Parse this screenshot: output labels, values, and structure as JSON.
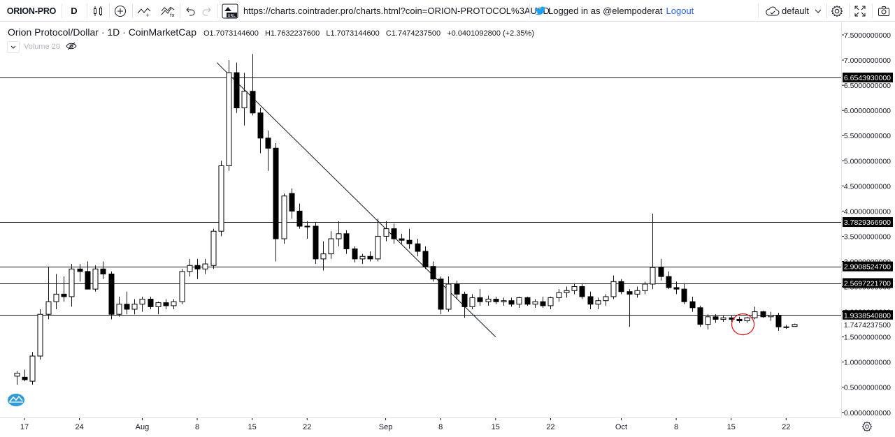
{
  "toolbar": {
    "symbol": "ORION-PRO",
    "interval": "D",
    "url": "https://charts.cointrader.pro/charts.html?coin=ORION-PROTOCOL%3AUSD",
    "login_text": "Logged in as @elempoderat",
    "logout_label": "Logout",
    "layout_name": "default",
    "icons": [
      "add-indicator-icon",
      "candles-icon",
      "plus-circle-icon",
      "compare-icon",
      "indicators-icon",
      "undo-icon",
      "redo-icon",
      "url-icon",
      "twitter-icon",
      "cloud-icon",
      "settings-icon",
      "fullscreen-icon",
      "camera-icon"
    ]
  },
  "legend": {
    "title": "Orion Protocol/Dollar · 1D · CoinMarketCap",
    "open": "O1.7073144600",
    "high": "H1.7632237600",
    "low": "L1.7073144600",
    "close": "C1.7474237500",
    "change": "+0.0401092800 (+2.35%)",
    "volume_label": "Volume 20"
  },
  "chart_data": {
    "type": "candlestick",
    "price_axis_ticks": [
      "7.5000000000",
      "7.0000000000",
      "6.5000000000",
      "6.0000000000",
      "5.5000000000",
      "5.0000000000",
      "4.5000000000",
      "4.0000000000",
      "3.5000000000",
      "3.0000000000",
      "2.5000000000",
      "2.0000000000",
      "1.5000000000",
      "1.0000000000",
      "0.5000000000",
      "0.0000000000"
    ],
    "price_min": -0.1,
    "price_max": 7.75,
    "time_axis_ticks": [
      {
        "label": "17",
        "day": 0
      },
      {
        "label": "24",
        "day": 7
      },
      {
        "label": "Aug",
        "day": 15
      },
      {
        "label": "8",
        "day": 22
      },
      {
        "label": "15",
        "day": 29
      },
      {
        "label": "22",
        "day": 36
      },
      {
        "label": "Sep",
        "day": 46
      },
      {
        "label": "8",
        "day": 53
      },
      {
        "label": "15",
        "day": 60
      },
      {
        "label": "22",
        "day": 67
      },
      {
        "label": "Oct",
        "day": 76
      },
      {
        "label": "8",
        "day": 83
      },
      {
        "label": "15",
        "day": 90
      },
      {
        "label": "22",
        "day": 97
      }
    ],
    "horizontal_levels": [
      {
        "price": 6.654393,
        "label": "6.6543930000"
      },
      {
        "price": 3.7829366,
        "label": "3.7829366900"
      },
      {
        "price": 2.9008524,
        "label": "2.9008524700"
      },
      {
        "price": 2.5697221,
        "label": "2.5697221700"
      },
      {
        "price": 1.933854,
        "label": "1.9338540800"
      }
    ],
    "last_price": {
      "price": 1.74742375,
      "label": "1.7474237500"
    },
    "trendline": {
      "from": {
        "day": 24.5,
        "price": 6.95
      },
      "to": {
        "day": 60,
        "price": 1.5
      }
    },
    "annotation": {
      "type": "circle",
      "day": 91.5,
      "price": 1.75
    },
    "candles": [
      {
        "d": -1,
        "o": 0.72,
        "h": 0.82,
        "l": 0.55,
        "c": 0.78
      },
      {
        "d": 0,
        "o": 0.7,
        "h": 0.85,
        "l": 0.62,
        "c": 0.65
      },
      {
        "d": 1,
        "o": 0.62,
        "h": 1.2,
        "l": 0.55,
        "c": 1.12
      },
      {
        "d": 2,
        "o": 1.12,
        "h": 2.05,
        "l": 1.05,
        "c": 1.95
      },
      {
        "d": 3,
        "o": 1.95,
        "h": 2.9,
        "l": 1.85,
        "c": 2.2
      },
      {
        "d": 4,
        "o": 2.2,
        "h": 2.75,
        "l": 2.05,
        "c": 2.35
      },
      {
        "d": 5,
        "o": 2.35,
        "h": 2.7,
        "l": 2.2,
        "c": 2.3
      },
      {
        "d": 6,
        "o": 2.3,
        "h": 2.95,
        "l": 2.1,
        "c": 2.85
      },
      {
        "d": 7,
        "o": 2.85,
        "h": 2.95,
        "l": 2.6,
        "c": 2.8
      },
      {
        "d": 8,
        "o": 2.8,
        "h": 3.0,
        "l": 2.45,
        "c": 2.45
      },
      {
        "d": 9,
        "o": 2.45,
        "h": 2.92,
        "l": 2.4,
        "c": 2.85
      },
      {
        "d": 10,
        "o": 2.85,
        "h": 3.0,
        "l": 2.65,
        "c": 2.75
      },
      {
        "d": 11,
        "o": 2.75,
        "h": 2.8,
        "l": 1.85,
        "c": 1.95
      },
      {
        "d": 12,
        "o": 1.95,
        "h": 2.3,
        "l": 1.9,
        "c": 2.15
      },
      {
        "d": 13,
        "o": 2.15,
        "h": 2.4,
        "l": 1.95,
        "c": 2.05
      },
      {
        "d": 14,
        "o": 2.05,
        "h": 2.25,
        "l": 1.95,
        "c": 2.15
      },
      {
        "d": 15,
        "o": 2.15,
        "h": 2.3,
        "l": 2.0,
        "c": 2.25
      },
      {
        "d": 16,
        "o": 2.25,
        "h": 2.3,
        "l": 2.05,
        "c": 2.1
      },
      {
        "d": 17,
        "o": 2.1,
        "h": 2.2,
        "l": 1.95,
        "c": 2.18
      },
      {
        "d": 18,
        "o": 2.18,
        "h": 2.25,
        "l": 2.05,
        "c": 2.12
      },
      {
        "d": 19,
        "o": 2.12,
        "h": 2.25,
        "l": 2.05,
        "c": 2.2
      },
      {
        "d": 20,
        "o": 2.2,
        "h": 2.85,
        "l": 2.15,
        "c": 2.8
      },
      {
        "d": 21,
        "o": 2.8,
        "h": 3.05,
        "l": 2.7,
        "c": 2.92
      },
      {
        "d": 22,
        "o": 2.92,
        "h": 3.05,
        "l": 2.65,
        "c": 2.85
      },
      {
        "d": 23,
        "o": 2.85,
        "h": 3.05,
        "l": 2.75,
        "c": 2.95
      },
      {
        "d": 24,
        "o": 2.92,
        "h": 3.65,
        "l": 2.85,
        "c": 3.6
      },
      {
        "d": 25,
        "o": 3.6,
        "h": 5.0,
        "l": 3.5,
        "c": 4.9
      },
      {
        "d": 26,
        "o": 4.9,
        "h": 7.0,
        "l": 4.8,
        "c": 6.75
      },
      {
        "d": 27,
        "o": 6.75,
        "h": 6.95,
        "l": 5.95,
        "c": 6.05
      },
      {
        "d": 28,
        "o": 6.05,
        "h": 6.75,
        "l": 5.7,
        "c": 6.38
      },
      {
        "d": 29,
        "o": 6.38,
        "h": 7.12,
        "l": 5.9,
        "c": 5.95
      },
      {
        "d": 30,
        "o": 5.95,
        "h": 6.05,
        "l": 5.15,
        "c": 5.45
      },
      {
        "d": 31,
        "o": 5.45,
        "h": 5.6,
        "l": 4.8,
        "c": 5.25
      },
      {
        "d": 32,
        "o": 5.25,
        "h": 5.35,
        "l": 3.0,
        "c": 3.45
      },
      {
        "d": 33,
        "o": 3.45,
        "h": 4.35,
        "l": 3.35,
        "c": 4.3
      },
      {
        "d": 34,
        "o": 4.35,
        "h": 4.45,
        "l": 3.85,
        "c": 4.0
      },
      {
        "d": 35,
        "o": 4.0,
        "h": 4.15,
        "l": 3.65,
        "c": 3.7
      },
      {
        "d": 36,
        "o": 3.7,
        "h": 3.8,
        "l": 3.45,
        "c": 3.7
      },
      {
        "d": 37,
        "o": 3.7,
        "h": 3.78,
        "l": 2.95,
        "c": 3.05
      },
      {
        "d": 38,
        "o": 3.05,
        "h": 3.4,
        "l": 2.82,
        "c": 3.15
      },
      {
        "d": 39,
        "o": 3.15,
        "h": 3.6,
        "l": 3.05,
        "c": 3.45
      },
      {
        "d": 40,
        "o": 3.45,
        "h": 3.8,
        "l": 3.3,
        "c": 3.55
      },
      {
        "d": 41,
        "o": 3.55,
        "h": 3.62,
        "l": 3.15,
        "c": 3.25
      },
      {
        "d": 42,
        "o": 3.25,
        "h": 3.3,
        "l": 2.98,
        "c": 3.05
      },
      {
        "d": 43,
        "o": 3.05,
        "h": 3.15,
        "l": 2.95,
        "c": 3.1
      },
      {
        "d": 44,
        "o": 3.1,
        "h": 3.2,
        "l": 3.0,
        "c": 3.05
      },
      {
        "d": 45,
        "o": 3.05,
        "h": 3.85,
        "l": 3.0,
        "c": 3.5
      },
      {
        "d": 46,
        "o": 3.5,
        "h": 3.8,
        "l": 3.4,
        "c": 3.65
      },
      {
        "d": 47,
        "o": 3.65,
        "h": 3.75,
        "l": 3.35,
        "c": 3.45
      },
      {
        "d": 48,
        "o": 3.45,
        "h": 3.55,
        "l": 3.35,
        "c": 3.42
      },
      {
        "d": 49,
        "o": 3.42,
        "h": 3.65,
        "l": 3.25,
        "c": 3.35
      },
      {
        "d": 50,
        "o": 3.35,
        "h": 3.45,
        "l": 3.1,
        "c": 3.2
      },
      {
        "d": 51,
        "o": 3.2,
        "h": 3.3,
        "l": 2.85,
        "c": 2.9
      },
      {
        "d": 52,
        "o": 2.9,
        "h": 3.0,
        "l": 2.6,
        "c": 2.65
      },
      {
        "d": 53,
        "o": 2.65,
        "h": 2.7,
        "l": 1.95,
        "c": 2.05
      },
      {
        "d": 54,
        "o": 2.05,
        "h": 2.7,
        "l": 2.0,
        "c": 2.55
      },
      {
        "d": 55,
        "o": 2.55,
        "h": 2.62,
        "l": 2.25,
        "c": 2.35
      },
      {
        "d": 56,
        "o": 2.35,
        "h": 2.4,
        "l": 1.88,
        "c": 2.1
      },
      {
        "d": 57,
        "o": 2.1,
        "h": 2.35,
        "l": 2.05,
        "c": 2.28
      },
      {
        "d": 58,
        "o": 2.28,
        "h": 2.45,
        "l": 2.12,
        "c": 2.2
      },
      {
        "d": 59,
        "o": 2.2,
        "h": 2.32,
        "l": 2.12,
        "c": 2.25
      },
      {
        "d": 60,
        "o": 2.25,
        "h": 2.3,
        "l": 2.15,
        "c": 2.2
      },
      {
        "d": 61,
        "o": 2.2,
        "h": 2.28,
        "l": 2.12,
        "c": 2.22
      },
      {
        "d": 62,
        "o": 2.22,
        "h": 2.28,
        "l": 2.1,
        "c": 2.15
      },
      {
        "d": 63,
        "o": 2.15,
        "h": 2.3,
        "l": 2.08,
        "c": 2.28
      },
      {
        "d": 64,
        "o": 2.28,
        "h": 2.3,
        "l": 2.12,
        "c": 2.15
      },
      {
        "d": 65,
        "o": 2.15,
        "h": 2.25,
        "l": 2.08,
        "c": 2.2
      },
      {
        "d": 66,
        "o": 2.2,
        "h": 2.3,
        "l": 2.08,
        "c": 2.12
      },
      {
        "d": 67,
        "o": 2.12,
        "h": 2.3,
        "l": 2.05,
        "c": 2.28
      },
      {
        "d": 68,
        "o": 2.28,
        "h": 2.45,
        "l": 2.2,
        "c": 2.38
      },
      {
        "d": 69,
        "o": 2.38,
        "h": 2.5,
        "l": 2.28,
        "c": 2.42
      },
      {
        "d": 70,
        "o": 2.42,
        "h": 2.55,
        "l": 2.35,
        "c": 2.5
      },
      {
        "d": 71,
        "o": 2.5,
        "h": 2.55,
        "l": 2.25,
        "c": 2.3
      },
      {
        "d": 72,
        "o": 2.3,
        "h": 2.4,
        "l": 2.05,
        "c": 2.15
      },
      {
        "d": 73,
        "o": 2.15,
        "h": 2.28,
        "l": 2.05,
        "c": 2.22
      },
      {
        "d": 74,
        "o": 2.22,
        "h": 2.35,
        "l": 2.12,
        "c": 2.3
      },
      {
        "d": 75,
        "o": 2.3,
        "h": 2.72,
        "l": 2.25,
        "c": 2.6
      },
      {
        "d": 76,
        "o": 2.6,
        "h": 2.65,
        "l": 2.35,
        "c": 2.4
      },
      {
        "d": 77,
        "o": 2.4,
        "h": 2.45,
        "l": 1.7,
        "c": 2.35
      },
      {
        "d": 78,
        "o": 2.35,
        "h": 2.5,
        "l": 2.28,
        "c": 2.42
      },
      {
        "d": 79,
        "o": 2.42,
        "h": 2.6,
        "l": 2.35,
        "c": 2.55
      },
      {
        "d": 80,
        "o": 2.55,
        "h": 3.95,
        "l": 2.45,
        "c": 2.88
      },
      {
        "d": 81,
        "o": 2.88,
        "h": 3.05,
        "l": 2.62,
        "c": 2.7
      },
      {
        "d": 82,
        "o": 2.7,
        "h": 2.8,
        "l": 2.45,
        "c": 2.48
      },
      {
        "d": 83,
        "o": 2.48,
        "h": 2.6,
        "l": 2.35,
        "c": 2.45
      },
      {
        "d": 84,
        "o": 2.45,
        "h": 2.55,
        "l": 2.15,
        "c": 2.2
      },
      {
        "d": 85,
        "o": 2.2,
        "h": 2.3,
        "l": 2.0,
        "c": 2.08
      },
      {
        "d": 86,
        "o": 2.08,
        "h": 2.12,
        "l": 1.7,
        "c": 1.75
      },
      {
        "d": 87,
        "o": 1.75,
        "h": 1.95,
        "l": 1.65,
        "c": 1.9
      },
      {
        "d": 88,
        "o": 1.9,
        "h": 1.95,
        "l": 1.78,
        "c": 1.85
      },
      {
        "d": 89,
        "o": 1.85,
        "h": 1.92,
        "l": 1.8,
        "c": 1.88
      },
      {
        "d": 90,
        "o": 1.88,
        "h": 1.92,
        "l": 1.8,
        "c": 1.85
      },
      {
        "d": 91,
        "o": 1.85,
        "h": 1.9,
        "l": 1.78,
        "c": 1.82
      },
      {
        "d": 92,
        "o": 1.82,
        "h": 1.9,
        "l": 1.78,
        "c": 1.88
      },
      {
        "d": 93,
        "o": 1.88,
        "h": 2.1,
        "l": 1.85,
        "c": 2.0
      },
      {
        "d": 94,
        "o": 2.0,
        "h": 2.02,
        "l": 1.88,
        "c": 1.9
      },
      {
        "d": 95,
        "o": 1.9,
        "h": 2.0,
        "l": 1.82,
        "c": 1.93
      },
      {
        "d": 96,
        "o": 1.93,
        "h": 1.98,
        "l": 1.62,
        "c": 1.7
      },
      {
        "d": 97,
        "o": 1.7,
        "h": 1.74,
        "l": 1.66,
        "c": 1.7
      },
      {
        "d": 98,
        "o": 1.7073,
        "h": 1.7632,
        "l": 1.7073,
        "c": 1.7474
      }
    ]
  }
}
